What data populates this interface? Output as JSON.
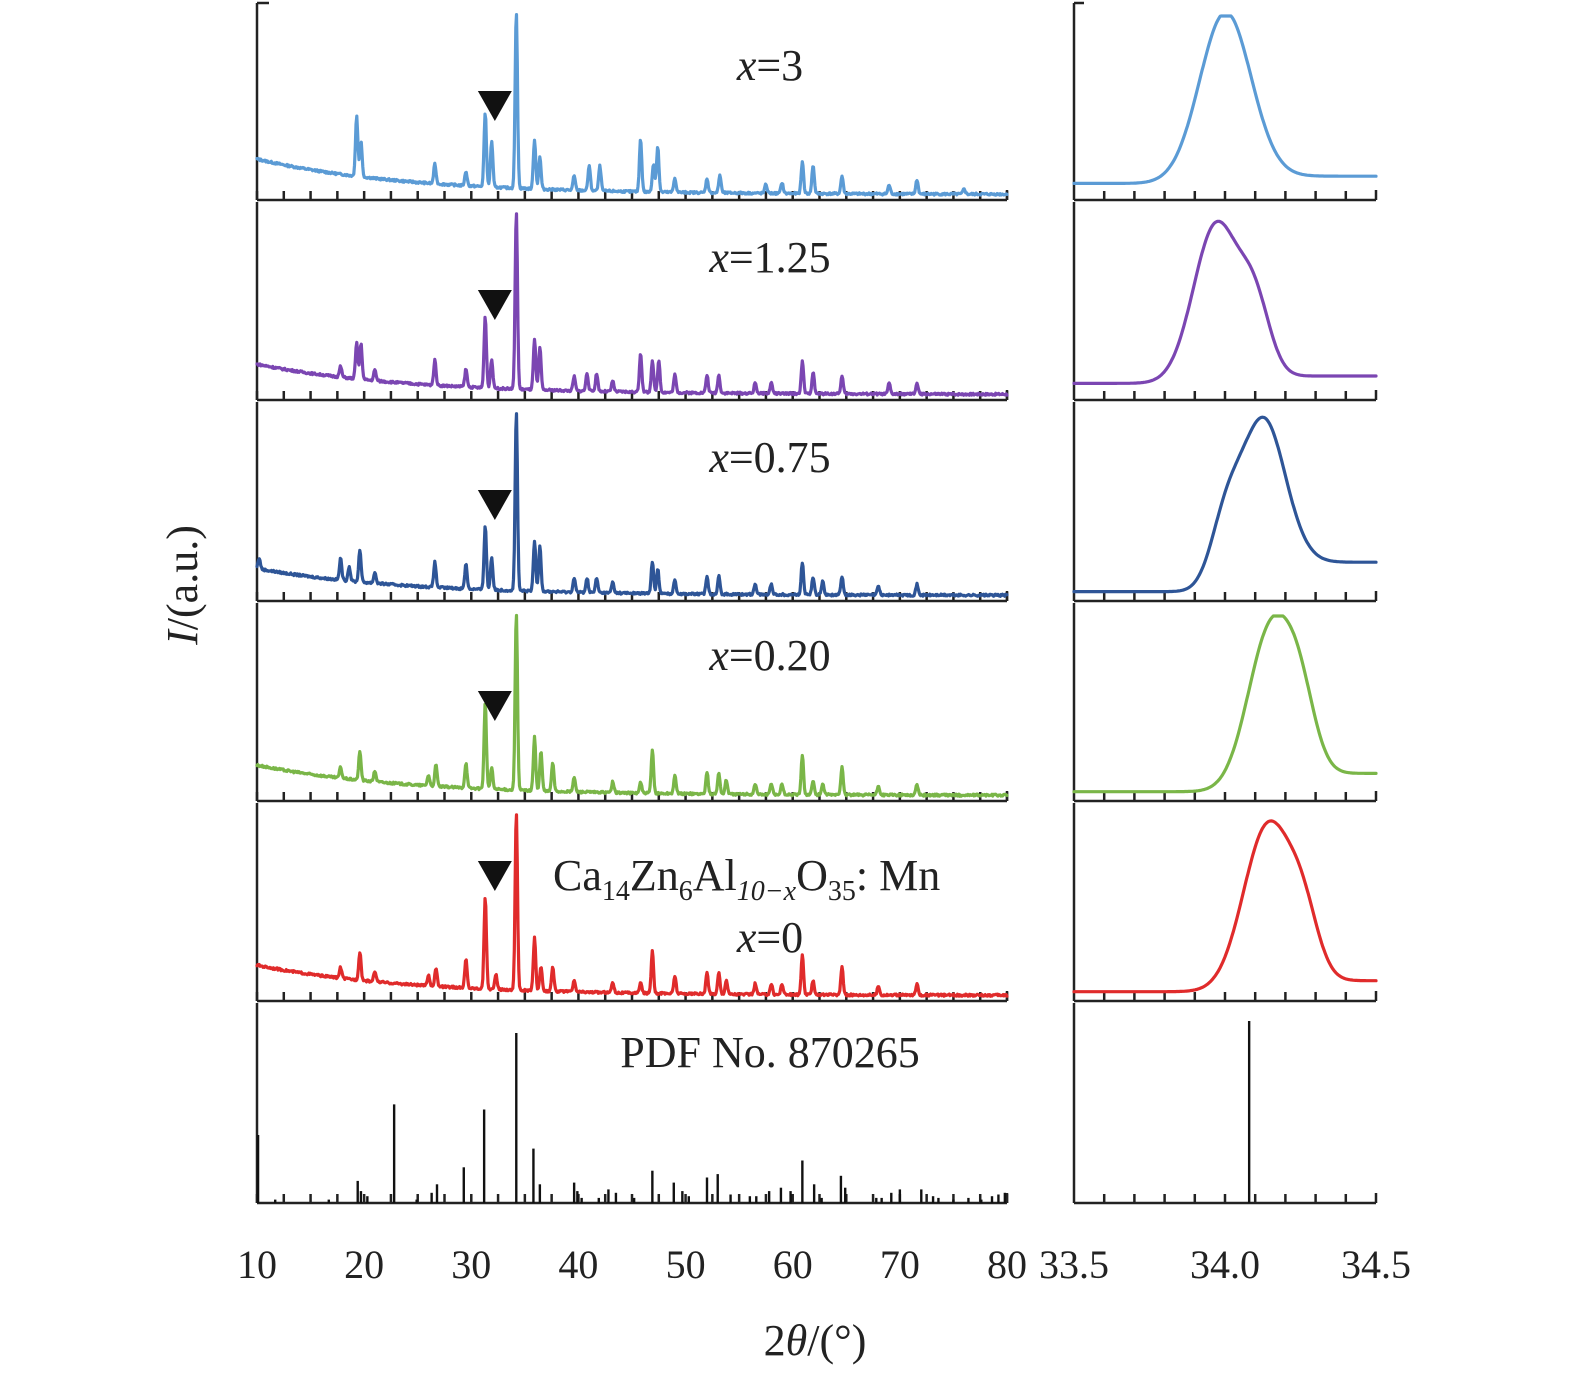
{
  "chart_data": {
    "type": "line",
    "title": "",
    "ylabel_italic": "I",
    "ylabel_rest": "/(a.u.)",
    "xlabel_prefix": "2",
    "xlabel_italic": "θ",
    "xlabel_rest": "/(°)",
    "main_panel": {
      "xlim": [
        10,
        80
      ],
      "xticks": [
        10,
        20,
        30,
        40,
        50,
        60,
        70,
        80
      ],
      "xtick_labels": [
        "10",
        "20",
        "30",
        "40",
        "50",
        "60",
        "70",
        "80"
      ]
    },
    "zoom_panel": {
      "xlim": [
        33.5,
        34.5
      ],
      "xtick_labels": [
        "33.5",
        "34.0",
        "34.5"
      ],
      "xtick_label_values": [
        33.5,
        34.0,
        34.5
      ]
    },
    "compound_label": {
      "ca": "Ca",
      "ca_sub": "14",
      "zn": "Zn",
      "zn_sub": "6",
      "al": "Al",
      "al_sub": "10−x",
      "o": "O",
      "o_sub": "35",
      "suffix": ": Mn"
    },
    "marker": "▼",
    "series": [
      {
        "name": "x=3",
        "label_var": "x",
        "label_val": "=3",
        "color": "#5b9bd5",
        "bg_start": 0.2,
        "bg_end": 0.02,
        "marker_at": 32.2,
        "peaks": [
          [
            19.3,
            0.34
          ],
          [
            19.7,
            0.2
          ],
          [
            26.6,
            0.11
          ],
          [
            29.5,
            0.08
          ],
          [
            31.3,
            0.42
          ],
          [
            31.9,
            0.26
          ],
          [
            34.2,
            1.0
          ],
          [
            35.9,
            0.28
          ],
          [
            36.4,
            0.18
          ],
          [
            39.6,
            0.08
          ],
          [
            41.0,
            0.14
          ],
          [
            42.0,
            0.14
          ],
          [
            45.8,
            0.3
          ],
          [
            47.0,
            0.16
          ],
          [
            47.4,
            0.26
          ],
          [
            49.0,
            0.08
          ],
          [
            52.0,
            0.08
          ],
          [
            53.2,
            0.1
          ],
          [
            57.5,
            0.05
          ],
          [
            59.0,
            0.06
          ],
          [
            60.9,
            0.18
          ],
          [
            61.9,
            0.16
          ],
          [
            64.6,
            0.1
          ],
          [
            69.0,
            0.05
          ],
          [
            71.6,
            0.08
          ],
          [
            76.0,
            0.03
          ]
        ],
        "zoom": {
          "center": 34.0,
          "width": 0.085,
          "amp": 0.92,
          "left_base": 0.08,
          "right_base": 0.12,
          "shoulders": []
        }
      },
      {
        "name": "x=1.25",
        "label_var": "x",
        "label_val": "=1.25",
        "color": "#7b46b2",
        "bg_start": 0.17,
        "bg_end": 0.02,
        "marker_at": 32.2,
        "peaks": [
          [
            17.8,
            0.06
          ],
          [
            19.3,
            0.2
          ],
          [
            19.7,
            0.2
          ],
          [
            21.0,
            0.06
          ],
          [
            26.6,
            0.14
          ],
          [
            29.5,
            0.1
          ],
          [
            31.3,
            0.4
          ],
          [
            31.9,
            0.16
          ],
          [
            34.2,
            1.0
          ],
          [
            35.9,
            0.28
          ],
          [
            36.4,
            0.24
          ],
          [
            39.6,
            0.08
          ],
          [
            40.8,
            0.1
          ],
          [
            41.7,
            0.1
          ],
          [
            43.2,
            0.06
          ],
          [
            45.8,
            0.22
          ],
          [
            46.9,
            0.18
          ],
          [
            47.5,
            0.18
          ],
          [
            49.0,
            0.1
          ],
          [
            52.0,
            0.1
          ],
          [
            53.1,
            0.1
          ],
          [
            56.5,
            0.06
          ],
          [
            58.0,
            0.06
          ],
          [
            60.9,
            0.18
          ],
          [
            61.9,
            0.12
          ],
          [
            64.6,
            0.1
          ],
          [
            69.0,
            0.06
          ],
          [
            71.6,
            0.06
          ]
        ],
        "zoom": {
          "center": 33.97,
          "width": 0.075,
          "amp": 0.85,
          "left_base": 0.08,
          "right_base": 0.12,
          "shoulders": [
            [
              34.1,
              0.35,
              0.05
            ]
          ]
        }
      },
      {
        "name": "x=0.75",
        "label_var": "x",
        "label_val": "=0.75",
        "color": "#2e5597",
        "bg_start": 0.15,
        "bg_end": 0.02,
        "marker_at": 32.2,
        "peaks": [
          [
            10.2,
            0.06
          ],
          [
            17.8,
            0.12
          ],
          [
            18.6,
            0.08
          ],
          [
            19.6,
            0.18
          ],
          [
            21.0,
            0.06
          ],
          [
            26.6,
            0.14
          ],
          [
            29.5,
            0.14
          ],
          [
            31.3,
            0.36
          ],
          [
            31.9,
            0.18
          ],
          [
            34.2,
            1.0
          ],
          [
            35.9,
            0.28
          ],
          [
            36.4,
            0.26
          ],
          [
            39.6,
            0.08
          ],
          [
            40.8,
            0.08
          ],
          [
            41.7,
            0.08
          ],
          [
            43.2,
            0.06
          ],
          [
            46.9,
            0.18
          ],
          [
            47.4,
            0.14
          ],
          [
            49.0,
            0.08
          ],
          [
            52.0,
            0.1
          ],
          [
            53.1,
            0.1
          ],
          [
            56.5,
            0.06
          ],
          [
            58.0,
            0.06
          ],
          [
            60.9,
            0.18
          ],
          [
            61.9,
            0.1
          ],
          [
            62.8,
            0.08
          ],
          [
            64.6,
            0.1
          ],
          [
            68.0,
            0.05
          ],
          [
            71.6,
            0.06
          ]
        ],
        "zoom": {
          "center": 34.12,
          "width": 0.075,
          "amp": 0.85,
          "left_base": 0.04,
          "right_base": 0.2,
          "shoulders": [
            [
              34.0,
              0.3,
              0.05
            ]
          ]
        }
      },
      {
        "name": "x=0.20",
        "label_var": "x",
        "label_val": "=0.20",
        "color": "#7ab648",
        "bg_start": 0.17,
        "bg_end": 0.02,
        "marker_at": 32.2,
        "peaks": [
          [
            17.8,
            0.06
          ],
          [
            19.6,
            0.16
          ],
          [
            21.0,
            0.06
          ],
          [
            26.0,
            0.06
          ],
          [
            26.7,
            0.12
          ],
          [
            29.5,
            0.14
          ],
          [
            31.3,
            0.48
          ],
          [
            31.9,
            0.12
          ],
          [
            34.2,
            1.0
          ],
          [
            35.9,
            0.3
          ],
          [
            36.5,
            0.22
          ],
          [
            37.6,
            0.16
          ],
          [
            39.6,
            0.08
          ],
          [
            43.2,
            0.06
          ],
          [
            45.8,
            0.06
          ],
          [
            46.9,
            0.24
          ],
          [
            49.0,
            0.1
          ],
          [
            52.0,
            0.12
          ],
          [
            53.1,
            0.12
          ],
          [
            53.8,
            0.08
          ],
          [
            56.5,
            0.06
          ],
          [
            58.0,
            0.06
          ],
          [
            59.0,
            0.06
          ],
          [
            60.9,
            0.22
          ],
          [
            61.9,
            0.08
          ],
          [
            62.8,
            0.06
          ],
          [
            64.6,
            0.16
          ],
          [
            68.0,
            0.05
          ],
          [
            71.6,
            0.06
          ]
        ],
        "zoom": {
          "center": 34.15,
          "width": 0.075,
          "amp": 0.85,
          "left_base": 0.04,
          "right_base": 0.14,
          "shoulders": [
            [
              34.25,
              0.3,
              0.05
            ]
          ]
        }
      },
      {
        "name": "x=0",
        "label_var": "x",
        "label_val": "=0",
        "color": "#e02b2b",
        "bg_start": 0.17,
        "bg_end": 0.02,
        "marker_at": 32.2,
        "peaks": [
          [
            17.8,
            0.06
          ],
          [
            19.6,
            0.16
          ],
          [
            21.0,
            0.06
          ],
          [
            26.0,
            0.06
          ],
          [
            26.7,
            0.1
          ],
          [
            29.5,
            0.16
          ],
          [
            31.3,
            0.52
          ],
          [
            32.3,
            0.08
          ],
          [
            34.2,
            1.0
          ],
          [
            35.9,
            0.3
          ],
          [
            36.5,
            0.14
          ],
          [
            37.6,
            0.14
          ],
          [
            39.6,
            0.06
          ],
          [
            43.2,
            0.06
          ],
          [
            45.8,
            0.06
          ],
          [
            46.9,
            0.24
          ],
          [
            49.0,
            0.1
          ],
          [
            52.0,
            0.12
          ],
          [
            53.1,
            0.12
          ],
          [
            53.8,
            0.08
          ],
          [
            56.5,
            0.06
          ],
          [
            58.0,
            0.06
          ],
          [
            59.0,
            0.06
          ],
          [
            60.9,
            0.22
          ],
          [
            61.9,
            0.08
          ],
          [
            64.6,
            0.16
          ],
          [
            68.0,
            0.05
          ],
          [
            71.6,
            0.06
          ]
        ],
        "zoom": {
          "center": 34.14,
          "width": 0.08,
          "amp": 0.88,
          "left_base": 0.04,
          "right_base": 0.1,
          "shoulders": [
            [
              34.26,
              0.28,
              0.05
            ]
          ]
        }
      }
    ],
    "reference": {
      "label": "PDF No. 870265",
      "color": "#111111",
      "lines": [
        [
          10.1,
          0.4
        ],
        [
          11.7,
          0.02
        ],
        [
          16.7,
          0.02
        ],
        [
          19.4,
          0.13
        ],
        [
          19.7,
          0.07
        ],
        [
          20.3,
          0.04
        ],
        [
          22.8,
          0.58
        ],
        [
          24.9,
          0.02
        ],
        [
          26.3,
          0.06
        ],
        [
          26.8,
          0.11
        ],
        [
          29.3,
          0.21
        ],
        [
          31.2,
          0.55
        ],
        [
          34.2,
          1.0
        ],
        [
          35.8,
          0.32
        ],
        [
          36.4,
          0.11
        ],
        [
          39.6,
          0.12
        ],
        [
          39.9,
          0.07
        ],
        [
          40.3,
          0.03
        ],
        [
          41.9,
          0.03
        ],
        [
          42.8,
          0.08
        ],
        [
          43.5,
          0.06
        ],
        [
          45.2,
          0.03
        ],
        [
          46.9,
          0.19
        ],
        [
          48.9,
          0.12
        ],
        [
          49.7,
          0.07
        ],
        [
          50.3,
          0.04
        ],
        [
          52.0,
          0.15
        ],
        [
          53.0,
          0.17
        ],
        [
          54.2,
          0.05
        ],
        [
          56.0,
          0.04
        ],
        [
          56.6,
          0.04
        ],
        [
          57.8,
          0.07
        ],
        [
          58.9,
          0.09
        ],
        [
          59.8,
          0.07
        ],
        [
          60.9,
          0.25
        ],
        [
          62.0,
          0.11
        ],
        [
          62.7,
          0.03
        ],
        [
          64.5,
          0.16
        ],
        [
          64.9,
          0.09
        ],
        [
          67.8,
          0.03
        ],
        [
          68.3,
          0.03
        ],
        [
          69.2,
          0.06
        ],
        [
          70.0,
          0.08
        ],
        [
          72.0,
          0.08
        ],
        [
          73.1,
          0.04
        ],
        [
          73.6,
          0.03
        ],
        [
          75.0,
          0.02
        ],
        [
          76.4,
          0.03
        ],
        [
          77.6,
          0.02
        ],
        [
          78.6,
          0.04
        ],
        [
          79.2,
          0.05
        ],
        [
          79.8,
          0.06
        ]
      ],
      "zoom_line": 34.08
    }
  }
}
